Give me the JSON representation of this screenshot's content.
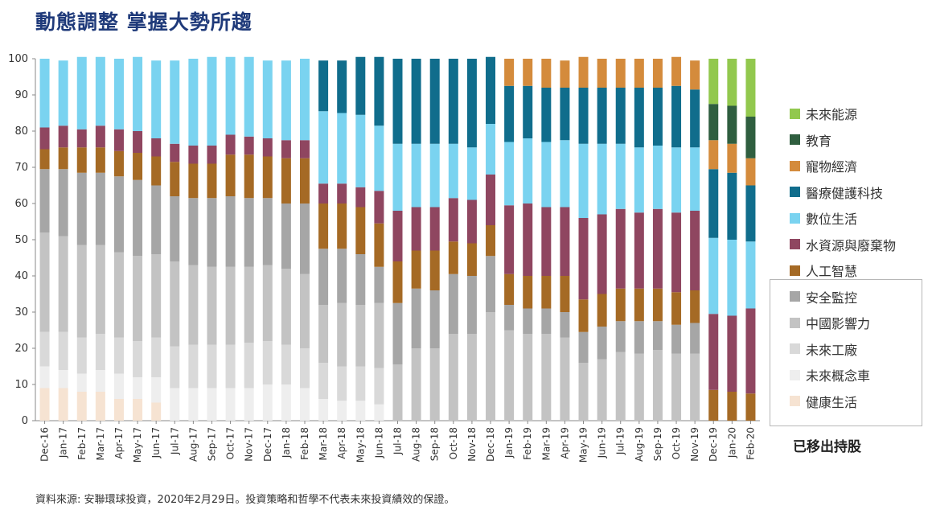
{
  "title": "動態調整  掌握大勢所趨",
  "source_note": "資料來源: 安聯環球投資，2020年2月29日。投資策略和哲學不代表未來投資績效的保證。",
  "removed_label": "已移出持股",
  "chart_data": {
    "type": "bar",
    "stacked": true,
    "ylim": [
      0,
      100
    ],
    "yticks": [
      0,
      10,
      20,
      30,
      40,
      50,
      60,
      70,
      80,
      90,
      100
    ],
    "categories": [
      "Dec-16",
      "Jan-17",
      "Feb-17",
      "Mar-17",
      "Apr-17",
      "May-17",
      "Jun-17",
      "Jul-17",
      "Aug-17",
      "Sep-17",
      "Oct-17",
      "Nov-17",
      "Dec-17",
      "Jan-18",
      "Feb-18",
      "Mar-18",
      "Apr-18",
      "May-18",
      "Jun-18",
      "Jul-18",
      "Aug-18",
      "Sep-18",
      "Oct-18",
      "Nov-18",
      "Dec-18",
      "Jan-19",
      "Feb-19",
      "Mar-19",
      "Apr-19",
      "May-19",
      "Jun-19",
      "Jul-19",
      "Aug-19",
      "Sep-19",
      "Oct-19",
      "Nov-19",
      "Dec-19",
      "Jan-20",
      "Feb-20"
    ],
    "series": [
      {
        "name": "健康生活",
        "color": "#f6e3d2",
        "values": [
          9,
          9,
          8,
          8,
          6,
          6,
          5,
          0,
          0,
          0,
          0,
          0,
          0,
          0,
          0,
          0,
          0,
          0,
          0,
          0,
          0,
          0,
          0,
          0,
          0,
          0,
          0,
          0,
          0,
          0,
          0,
          0,
          0,
          0,
          0,
          0,
          0,
          0,
          0
        ]
      },
      {
        "name": "未來概念車",
        "color": "#eeeeee",
        "values": [
          6,
          5,
          5,
          6,
          7,
          6,
          7,
          9,
          9,
          9,
          9,
          9,
          10,
          10,
          9,
          6,
          5.5,
          5.5,
          4.5,
          0,
          0,
          0,
          0,
          0,
          0,
          0,
          0,
          0,
          0,
          0,
          0,
          0,
          0,
          0,
          0,
          0,
          0,
          0,
          0
        ]
      },
      {
        "name": "未來工廠",
        "color": "#d9d9d9",
        "values": [
          9.5,
          10.5,
          10,
          10,
          10,
          10,
          11,
          11.5,
          12,
          12,
          12,
          12.5,
          12,
          11,
          11,
          10,
          9.5,
          9.5,
          10,
          0,
          0,
          0,
          0,
          0,
          0,
          0,
          0,
          0,
          0,
          0,
          0,
          0,
          0,
          0,
          0,
          0,
          0,
          0,
          0
        ]
      },
      {
        "name": "中國影響力",
        "color": "#c3c3c3",
        "values": [
          27.5,
          26.5,
          25.5,
          24.5,
          23.5,
          23.5,
          23,
          23.5,
          22,
          21.5,
          21.5,
          21,
          21,
          21,
          20.5,
          16,
          17.5,
          17,
          18,
          15.5,
          20,
          20,
          24,
          24,
          30,
          25,
          24,
          24,
          23,
          16,
          17,
          19,
          18.5,
          19.5,
          18.5,
          18.5,
          0,
          0,
          0
        ]
      },
      {
        "name": "安全監控",
        "color": "#a6a6a6",
        "values": [
          17.5,
          18.5,
          20,
          20,
          21,
          21,
          19,
          18,
          18.5,
          19,
          19.5,
          19,
          18.5,
          18,
          19.5,
          15.5,
          15,
          14,
          10,
          17,
          16.5,
          16,
          16.5,
          16,
          15.5,
          7,
          7,
          7,
          7,
          8.5,
          9,
          8.5,
          9,
          8,
          8,
          8.5,
          0,
          0,
          0
        ]
      },
      {
        "name": "人工智慧",
        "color": "#a56a25",
        "values": [
          5.5,
          6,
          7,
          7,
          7,
          7.5,
          8,
          9.5,
          9.5,
          9.5,
          11.5,
          12,
          11.5,
          12.5,
          12.5,
          12.5,
          12.5,
          13,
          12,
          11.5,
          10.5,
          11,
          9,
          9,
          8.5,
          8.5,
          9,
          9,
          10,
          9,
          9,
          9,
          9,
          9,
          9,
          9,
          8.5,
          8,
          7.5
        ]
      },
      {
        "name": "水資源與廢棄物",
        "color": "#8f4660",
        "values": [
          6,
          6,
          5,
          6,
          6,
          6,
          5,
          5,
          5,
          5,
          5.5,
          5,
          5,
          5,
          5,
          5.5,
          5.5,
          5.5,
          9,
          14,
          12,
          12,
          12,
          12,
          14,
          19,
          20,
          19,
          19,
          22.5,
          22,
          22,
          21,
          22,
          22,
          22,
          21,
          21,
          23.5
        ]
      },
      {
        "name": "數位生活",
        "color": "#7ad3f0",
        "values": [
          19,
          18,
          20,
          19,
          19.5,
          20.5,
          21.5,
          23,
          24,
          24.5,
          21.5,
          22,
          21.5,
          22,
          22.5,
          20,
          19.5,
          20,
          18,
          18.5,
          17.5,
          17.5,
          15,
          14.5,
          14,
          17.5,
          18,
          18,
          18.5,
          20.5,
          19.5,
          18,
          18,
          17.5,
          18,
          17.5,
          21,
          21,
          18.5
        ]
      },
      {
        "name": "醫療健護科技",
        "color": "#106d8c",
        "values": [
          0,
          0,
          0,
          0,
          0,
          0,
          0,
          0,
          0,
          0,
          0,
          0,
          0,
          0,
          0,
          14,
          14.5,
          16,
          19,
          23.5,
          23.5,
          23.5,
          23.5,
          24.5,
          18.5,
          15.5,
          14.5,
          15,
          14.5,
          15.5,
          15.5,
          15.5,
          16.5,
          16,
          17,
          16,
          19,
          18.5,
          15.5
        ]
      },
      {
        "name": "寵物經濟",
        "color": "#d48b3c",
        "values": [
          0,
          0,
          0,
          0,
          0,
          0,
          0,
          0,
          0,
          0,
          0,
          0,
          0,
          0,
          0,
          0,
          0,
          0,
          0,
          0,
          0,
          0,
          0,
          0,
          0,
          7.5,
          7.5,
          8,
          7.5,
          8.5,
          8,
          8,
          8,
          8,
          8,
          8,
          8,
          8,
          7.5
        ]
      },
      {
        "name": "教育",
        "color": "#2f5e3f",
        "values": [
          0,
          0,
          0,
          0,
          0,
          0,
          0,
          0,
          0,
          0,
          0,
          0,
          0,
          0,
          0,
          0,
          0,
          0,
          0,
          0,
          0,
          0,
          0,
          0,
          0,
          0,
          0,
          0,
          0,
          0,
          0,
          0,
          0,
          0,
          0,
          0,
          10,
          10.5,
          11.5
        ]
      },
      {
        "name": "未來能源",
        "color": "#92c84e",
        "values": [
          0,
          0,
          0,
          0,
          0,
          0,
          0,
          0,
          0,
          0,
          0,
          0,
          0,
          0,
          0,
          0,
          0,
          0,
          0,
          0,
          0,
          0,
          0,
          0,
          0,
          0,
          0,
          0,
          0,
          0,
          0,
          0,
          0,
          0,
          0,
          0,
          12.5,
          13,
          16
        ]
      }
    ],
    "legend_order": [
      "未來能源",
      "教育",
      "寵物經濟",
      "醫療健護科技",
      "數位生活",
      "水資源與廢棄物",
      "人工智慧",
      "安全監控",
      "中國影響力",
      "未來工廠",
      "未來概念車",
      "健康生活"
    ],
    "removed_from_holdings": [
      "安全監控",
      "中國影響力",
      "未來工廠",
      "未來概念車",
      "健康生活"
    ]
  }
}
